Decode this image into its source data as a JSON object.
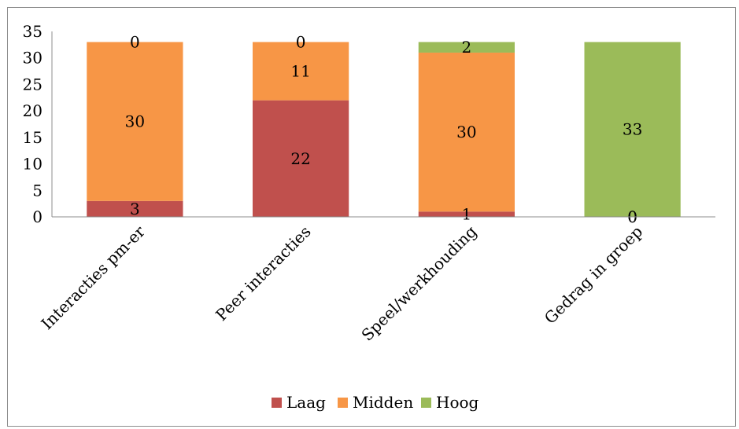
{
  "chart_data": {
    "type": "bar",
    "stacked": true,
    "title": "",
    "xlabel": "",
    "ylabel": "",
    "categories": [
      "Interacties pm-er",
      "Peer interacties",
      "Speel/werkhouding",
      "Gedrag in groep"
    ],
    "series": [
      {
        "name": "Laag",
        "color": "#c0504d",
        "values": [
          3,
          22,
          1,
          0
        ]
      },
      {
        "name": "Midden",
        "color": "#f79646",
        "values": [
          30,
          11,
          30,
          0
        ]
      },
      {
        "name": "Hoog",
        "color": "#9bbb59",
        "values": [
          0,
          0,
          2,
          33
        ]
      }
    ],
    "ylim": [
      0,
      35
    ],
    "yticks": [
      "0",
      "5",
      "10",
      "15",
      "20",
      "25",
      "30",
      "35"
    ],
    "grid": false,
    "legend_position": "bottom"
  }
}
